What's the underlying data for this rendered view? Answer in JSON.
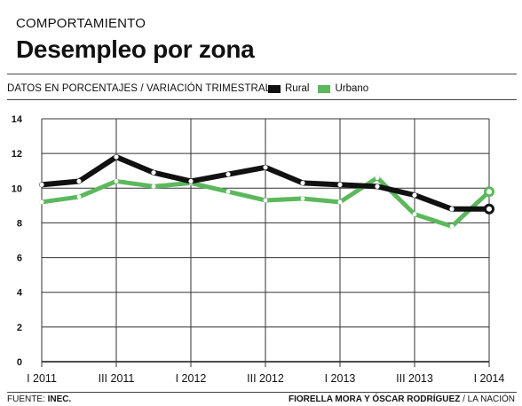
{
  "kicker": "COMPORTAMIENTO",
  "title": "Desempleo por zona",
  "subtitle": "DATOS EN PORCENTAJES / VARIACIÓN TRIMESTRAL",
  "source_prefix": "FUENTE:",
  "source_name": "INEC.",
  "credit_authors": "FIORELLA MORA Y ÓSCAR RODRÍGUEZ",
  "credit_outlet": "/ LA NACIÓN",
  "chart_data": {
    "type": "line",
    "title": "Desempleo por zona",
    "xlabel": "",
    "ylabel": "",
    "ylim": [
      0,
      14
    ],
    "yticks": [
      0,
      2,
      4,
      6,
      8,
      10,
      12,
      14
    ],
    "grid": true,
    "legend_position": "top-right",
    "x_tick_labels": [
      "I 2011",
      "III 2011",
      "I 2012",
      "III 2012",
      "I 2013",
      "III 2013",
      "I 2014"
    ],
    "x_tick_positions": [
      0,
      2,
      4,
      6,
      8,
      10,
      12
    ],
    "series": [
      {
        "name": "Rural",
        "color": "#111111",
        "values": [
          10.2,
          10.4,
          11.8,
          10.9,
          10.4,
          10.8,
          11.2,
          10.3,
          10.2,
          10.1,
          9.6,
          8.8,
          8.8
        ]
      },
      {
        "name": "Urbano",
        "color": "#5cb85c",
        "values": [
          9.2,
          9.5,
          10.4,
          10.1,
          10.3,
          9.8,
          9.3,
          9.4,
          9.2,
          10.6,
          8.5,
          7.8,
          9.8
        ]
      }
    ]
  }
}
